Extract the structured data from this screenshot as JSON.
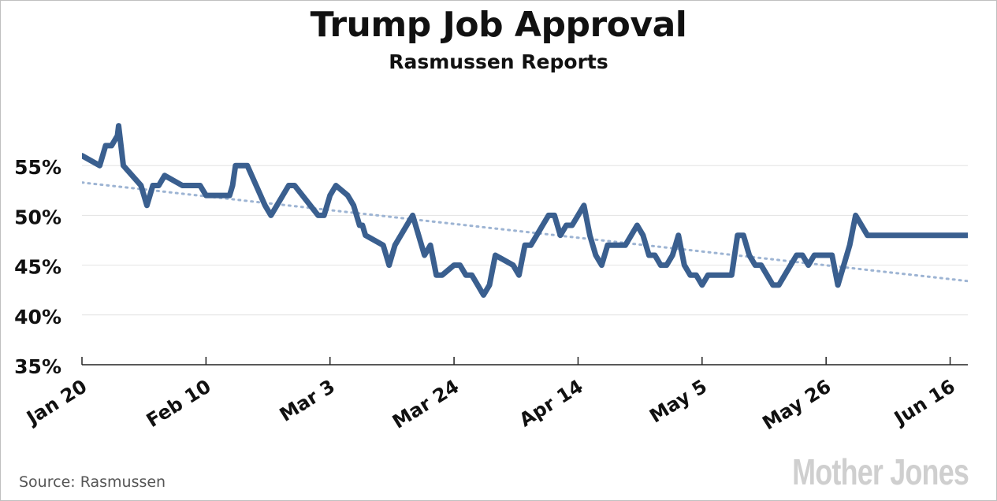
{
  "chart_data": {
    "type": "line",
    "title": "Trump Job Approval",
    "subtitle": "Rasmussen Reports",
    "xlabel": "",
    "ylabel": "",
    "ylim": [
      35,
      60
    ],
    "y_ticks": [
      35,
      40,
      45,
      50,
      55
    ],
    "y_tick_labels": [
      "35%",
      "40%",
      "45%",
      "50%",
      "55%"
    ],
    "x_tick_labels": [
      "Jan 20",
      "Feb 10",
      "Mar 3",
      "Mar 24",
      "Apr 14",
      "May 5",
      "May 26",
      "Jun 16"
    ],
    "x_tick_days": [
      0,
      21,
      42,
      63,
      84,
      105,
      126,
      147
    ],
    "xlim": [
      0,
      150
    ],
    "grid": "horizontal",
    "series": [
      {
        "name": "Approval",
        "color": "#3a5f8f",
        "x": [
          0,
          3,
          4,
          5,
          6,
          6.2,
          6.6,
          7,
          10,
          11,
          11.5,
          12,
          13,
          14,
          17,
          20,
          21,
          25,
          25.5,
          26,
          28,
          31,
          32,
          33,
          34,
          35,
          36,
          40,
          41,
          42,
          43,
          45,
          46,
          46.5,
          47,
          47.5,
          48,
          51,
          52,
          53,
          55,
          56,
          58,
          59,
          60,
          61,
          63,
          64,
          65,
          66,
          67,
          68,
          69,
          70,
          73,
          74,
          75,
          76,
          77,
          78,
          79,
          80,
          81,
          82,
          83,
          84,
          85,
          86,
          87,
          88,
          89,
          90,
          91,
          92,
          93,
          94,
          95,
          96,
          97,
          98,
          99,
          100,
          101,
          102,
          103,
          104,
          105,
          106,
          107,
          108,
          109,
          110,
          111,
          112,
          113,
          114,
          115,
          116,
          117,
          118,
          119,
          120,
          121,
          122,
          123,
          124,
          125,
          126,
          127,
          128,
          129,
          130,
          131,
          132,
          133,
          134,
          135,
          136,
          137,
          138,
          139,
          140,
          141,
          142,
          143,
          144,
          145,
          146,
          147,
          148,
          149,
          150
        ],
        "values": [
          56,
          55,
          57,
          57,
          58,
          59,
          57,
          55,
          53,
          51,
          52,
          53,
          53,
          54,
          53,
          53,
          52,
          52,
          53,
          55,
          55,
          51,
          50,
          51,
          52,
          53,
          53,
          50,
          50,
          52,
          53,
          52,
          51,
          50,
          49,
          49,
          48,
          47,
          45,
          47,
          49,
          50,
          46,
          47,
          44,
          44,
          45,
          45,
          44,
          44,
          43,
          42,
          43,
          46,
          45,
          44,
          47,
          47,
          48,
          49,
          50,
          50,
          48,
          49,
          49,
          50,
          51,
          48,
          46,
          45,
          47,
          47,
          47,
          47,
          48,
          49,
          48,
          46,
          46,
          45,
          45,
          46,
          48,
          45,
          44,
          44,
          43,
          44,
          44,
          44,
          44,
          44,
          48,
          48,
          46,
          45,
          45,
          44,
          43,
          43,
          44,
          45,
          46,
          46,
          45,
          46,
          46,
          46,
          46,
          43,
          45,
          47,
          50,
          49,
          48,
          48,
          48,
          48,
          48,
          48,
          48,
          48,
          48,
          48,
          48,
          48,
          48,
          48,
          48,
          48,
          48,
          48
        ]
      },
      {
        "name": "Trend",
        "color": "#9db4d3",
        "style": "dotted",
        "x": [
          0,
          150
        ],
        "values": [
          53.3,
          43.4
        ]
      }
    ]
  },
  "footer": {
    "source": "Source:  Rasmussen",
    "logo": "Mother Jones"
  }
}
